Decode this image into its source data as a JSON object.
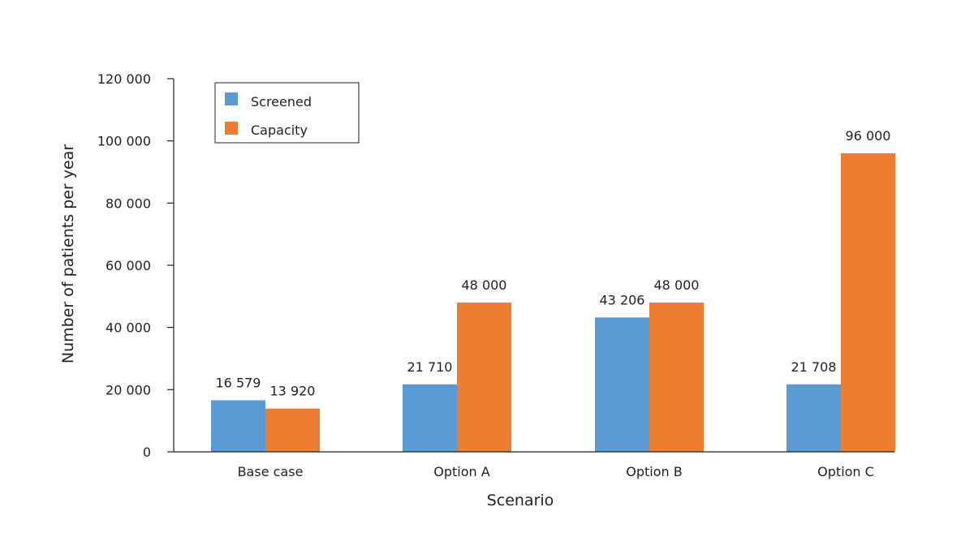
{
  "chart_data": {
    "type": "bar",
    "categories": [
      "Base case",
      "Option A",
      "Option B",
      "Option C"
    ],
    "series": [
      {
        "name": "Screened",
        "color": "#5b9bd5",
        "values": [
          16579,
          21710,
          43206,
          21708
        ],
        "labels": [
          "16 579",
          "21 710",
          "43 206",
          "21 708"
        ]
      },
      {
        "name": "Capacity",
        "color": "#ed7d31",
        "values": [
          13920,
          48000,
          48000,
          96000
        ],
        "labels": [
          "13 920",
          "48 000",
          "48 000",
          "96 000"
        ]
      }
    ],
    "xlabel": "Scenario",
    "ylabel": "Number of patients per year",
    "ylim": [
      0,
      120000
    ],
    "yticks": [
      0,
      20000,
      40000,
      60000,
      80000,
      100000,
      120000
    ],
    "ytick_labels": [
      "0",
      "20 000",
      "40 000",
      "60 000",
      "80 000",
      "100 000",
      "120 000"
    ],
    "grid": false,
    "legend_position": "top-left"
  }
}
